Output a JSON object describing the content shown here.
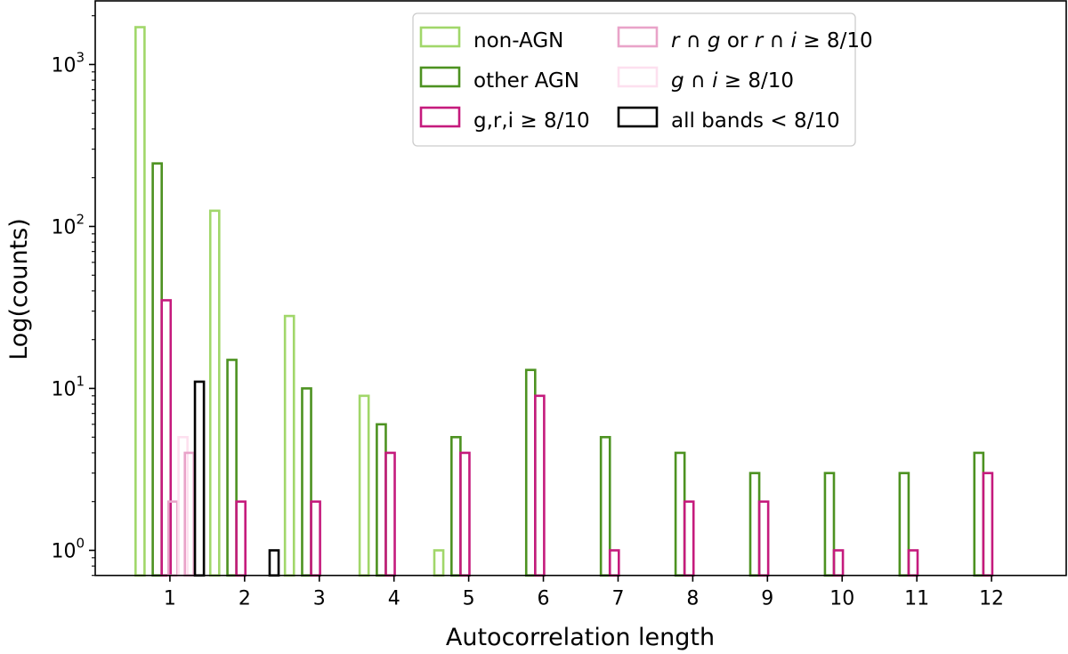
{
  "chart_data": {
    "type": "bar",
    "xlabel": "Autocorrelation length",
    "ylabel": "Log(counts)",
    "yscale": "log",
    "xlim": [
      0,
      13
    ],
    "ylim": [
      0.7,
      2470
    ],
    "grid": false,
    "legend_placement": "top-right",
    "x_ticks": [
      1,
      2,
      3,
      4,
      5,
      6,
      7,
      8,
      9,
      10,
      11,
      12
    ],
    "y_ticks": [
      {
        "value": 1,
        "label": "10",
        "exp": "0"
      },
      {
        "value": 10,
        "label": "10",
        "exp": "1"
      },
      {
        "value": 100,
        "label": "10",
        "exp": "2"
      },
      {
        "value": 1000,
        "label": "10",
        "exp": "3"
      }
    ],
    "series": [
      {
        "name": "non-AGN",
        "color": "#a1d76a",
        "x": [
          1,
          2,
          3,
          4,
          5
        ],
        "values": [
          1700,
          125,
          28,
          9,
          1
        ]
      },
      {
        "name": "other AGN",
        "color": "#4d9221",
        "x": [
          1,
          2,
          3,
          4,
          5,
          6,
          7,
          8,
          9,
          10,
          11,
          12
        ],
        "values": [
          245,
          15,
          10,
          6,
          5,
          13,
          5,
          4,
          3,
          3,
          3,
          4
        ]
      },
      {
        "name": "g,r,i ≥ 8/10",
        "color": "#c51b7d",
        "x": [
          1,
          2,
          3,
          4,
          5,
          6,
          7,
          8,
          9,
          10,
          11,
          12
        ],
        "values": [
          35,
          2,
          2,
          4,
          4,
          9,
          1,
          2,
          2,
          1,
          1,
          3
        ]
      },
      {
        "name": "r ∩ g or r ∩ i ≥ 8/10",
        "color": "#e9a3c9",
        "x": [
          1
        ],
        "values": [
          2
        ]
      },
      {
        "name": "g ∩ i ≥ 8/10",
        "color": "#fde0ef",
        "x": [
          1
        ],
        "values": [
          5
        ]
      },
      {
        "name": "",
        "color": "#e9a3c9",
        "x": [
          1
        ],
        "values": [
          4
        ]
      },
      {
        "name": "all bands < 8/10",
        "color": "#000000",
        "x": [
          1,
          2
        ],
        "values": [
          11,
          1
        ]
      }
    ],
    "legend": [
      {
        "label": "non-AGN",
        "color": "#a1d76a"
      },
      {
        "label": "other AGN",
        "color": "#4d9221"
      },
      {
        "label": "g,r,i ≥ 8/10",
        "color": "#c51b7d"
      },
      {
        "label": "r ∩ g or r ∩ i ≥ 8/10",
        "color": "#e9a3c9"
      },
      {
        "label": "g ∩ i ≥ 8/10",
        "color": "#fde0ef"
      },
      {
        "label": "all bands < 8/10",
        "color": "#000000"
      }
    ]
  }
}
